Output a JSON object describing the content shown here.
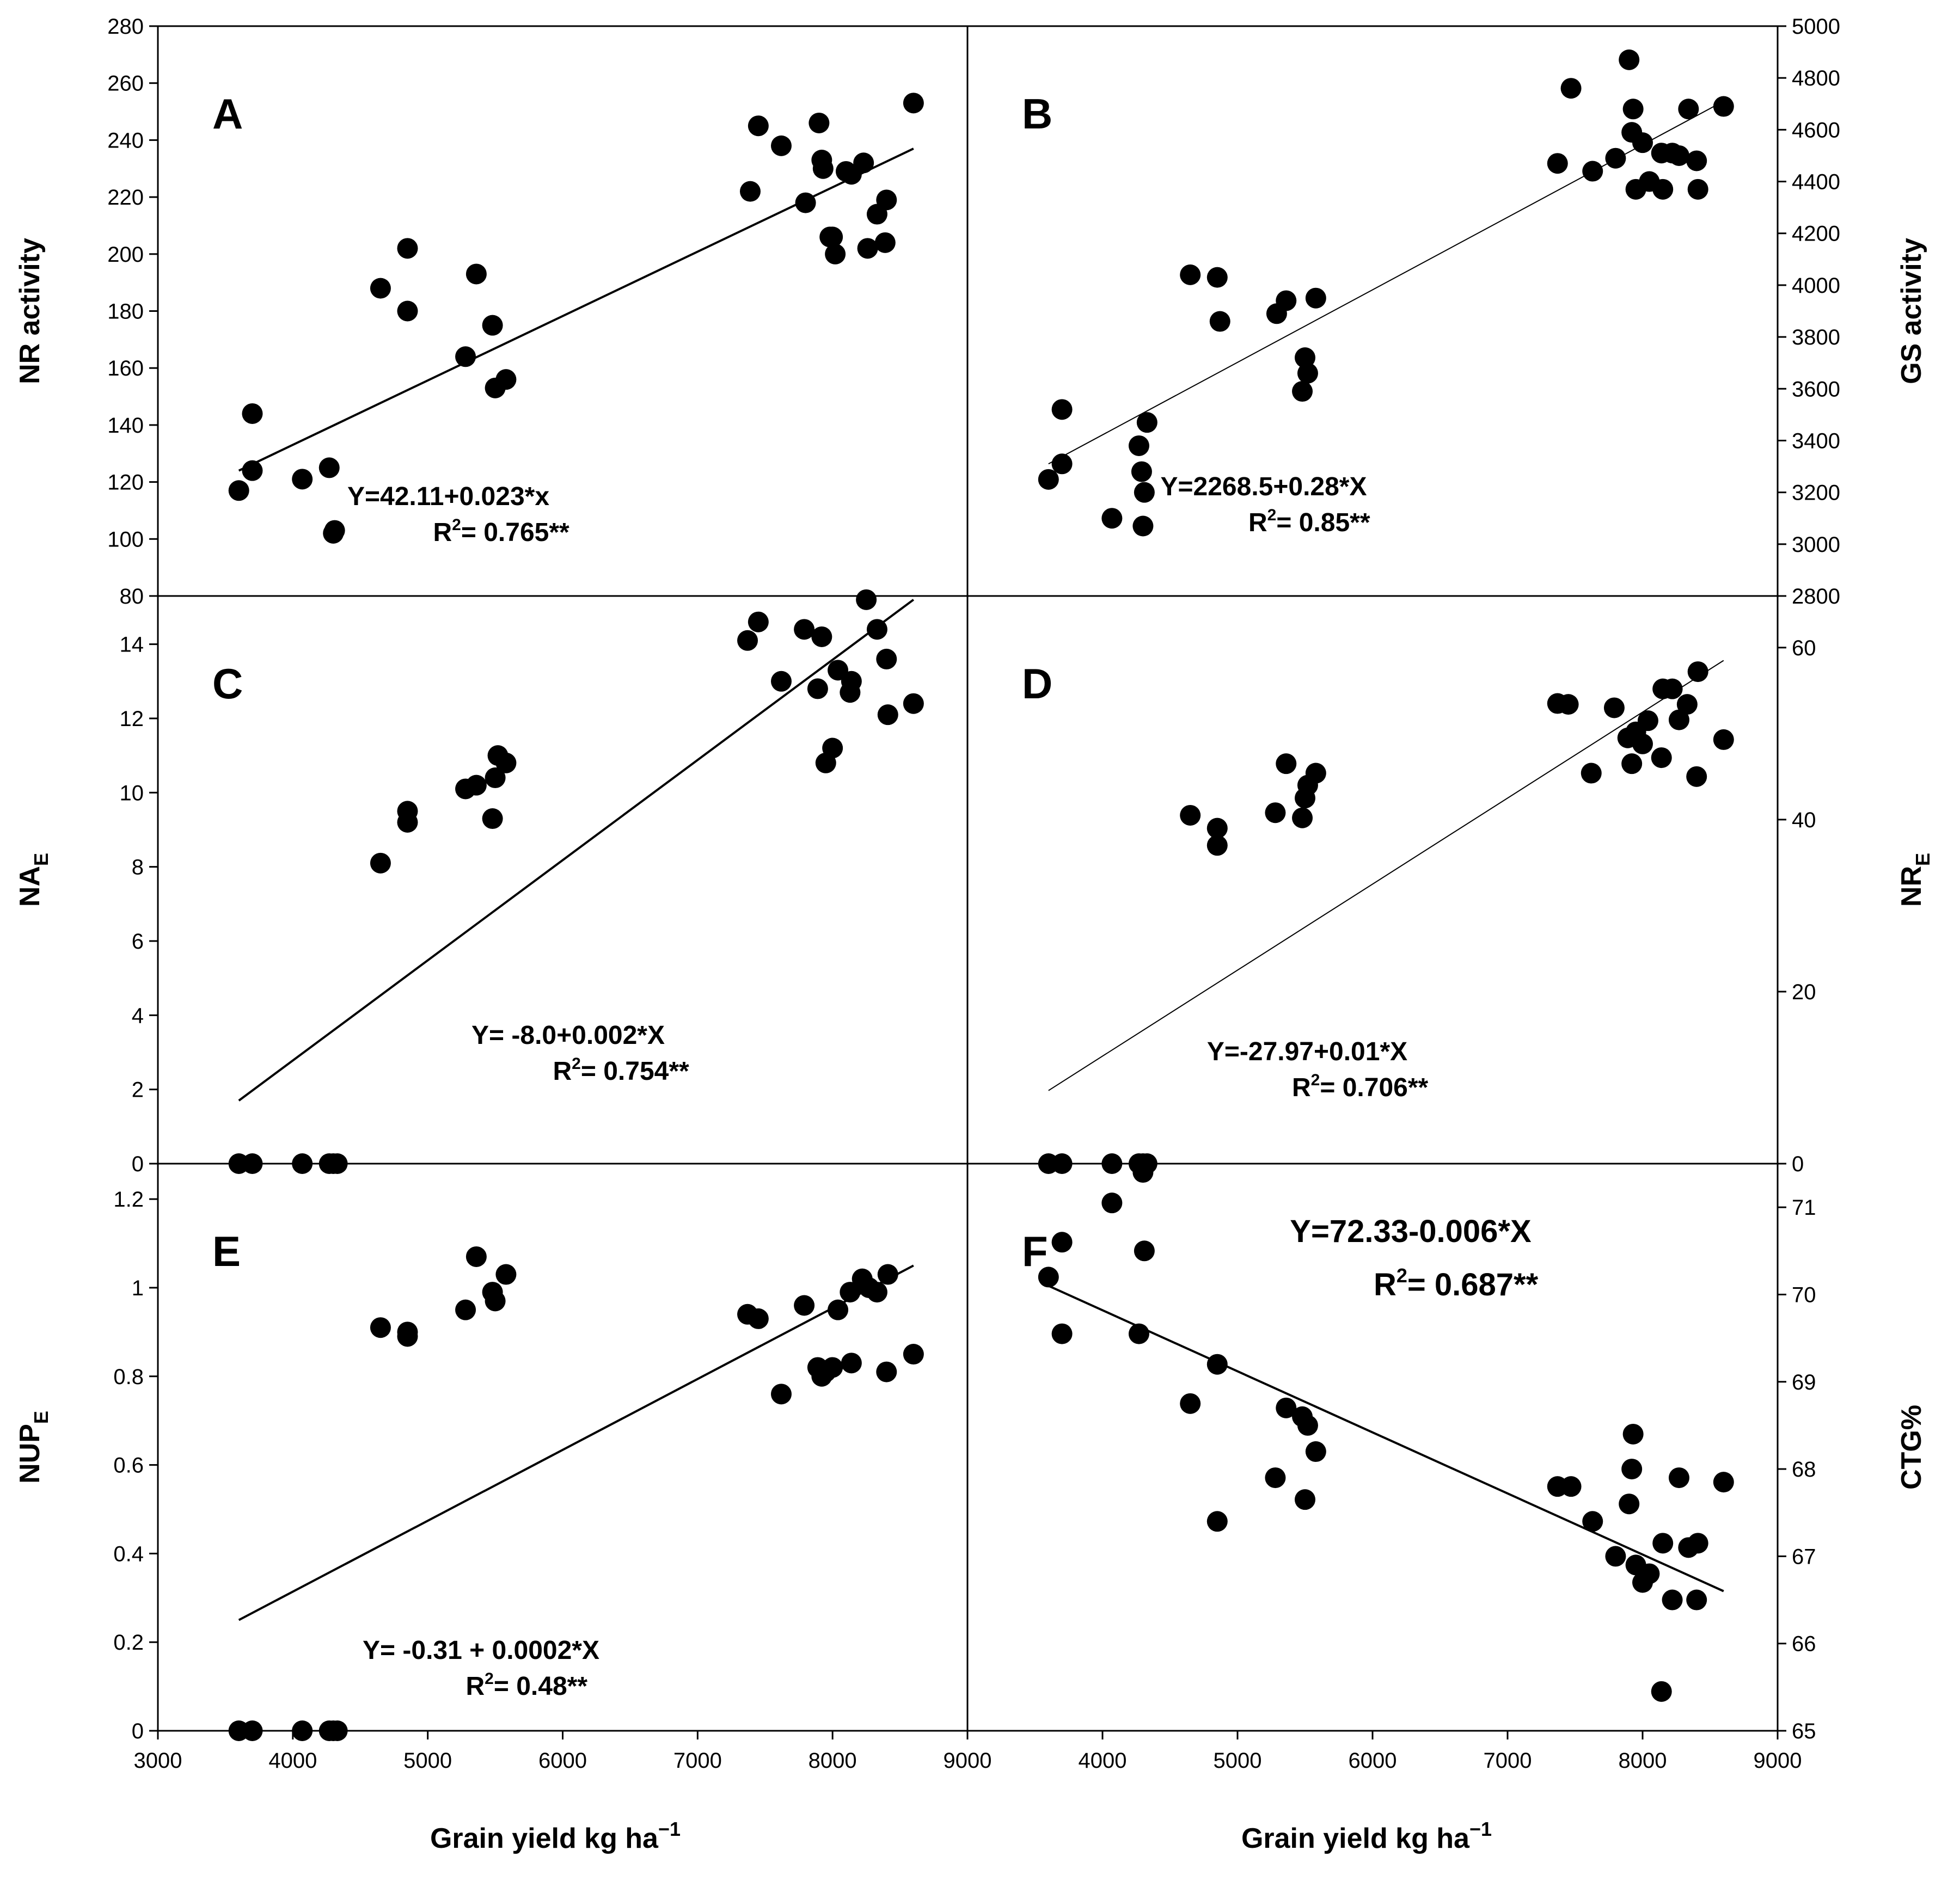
{
  "figure": {
    "xlabel": "Grain yield kg ha",
    "xlabel_sup": "−1",
    "x_ticks": [
      "3000",
      "4000",
      "5000",
      "6000",
      "7000",
      "8000",
      "9000",
      "4000",
      "5000",
      "6000",
      "7000",
      "8000",
      "9000"
    ]
  },
  "chart_data": [
    {
      "id": "A",
      "type": "scatter",
      "panel_label": "A",
      "ylabel": "NR activity",
      "ylabel_sub": "",
      "ylabel_side": "left",
      "xlim": [
        3000,
        9000
      ],
      "ylim": [
        80,
        280
      ],
      "yticks": [
        80,
        100,
        120,
        140,
        160,
        180,
        200,
        220,
        240,
        260,
        280
      ],
      "x": [
        3600,
        3700,
        3700,
        4070,
        4270,
        4300,
        4310,
        4650,
        4850,
        4850,
        5280,
        5360,
        5480,
        5500,
        5580,
        7390,
        7450,
        7620,
        7800,
        7900,
        7920,
        7930,
        7980,
        8000,
        8020,
        8100,
        8140,
        8230,
        8260,
        8330,
        8390,
        8400,
        8600
      ],
      "y": [
        117,
        124,
        144,
        121,
        125,
        102,
        103,
        188,
        180,
        202,
        164,
        193,
        175,
        153,
        156,
        222,
        245,
        238,
        218,
        246,
        233,
        230,
        206,
        206,
        200,
        229,
        228,
        232,
        202,
        214,
        204,
        219,
        253
      ],
      "fit": {
        "x": [
          3600,
          8600
        ],
        "y": [
          124,
          237
        ]
      },
      "equation": "Y=42.11+0.023*x",
      "r2_text": "= 0.765**"
    },
    {
      "id": "B",
      "type": "scatter",
      "panel_label": "B",
      "ylabel": "GS activity",
      "ylabel_sub": "",
      "ylabel_side": "right",
      "xlim": [
        3000,
        9000
      ],
      "ylim": [
        2800,
        5000
      ],
      "yticks": [
        2800,
        3000,
        3200,
        3400,
        3600,
        3800,
        4000,
        4200,
        4400,
        4600,
        4800,
        5000
      ],
      "x": [
        3600,
        3700,
        3700,
        4070,
        4270,
        4290,
        4300,
        4310,
        4330,
        4650,
        4850,
        4870,
        5290,
        5360,
        5480,
        5500,
        5520,
        5580,
        7370,
        7470,
        7630,
        7800,
        7900,
        7920,
        7930,
        7950,
        8000,
        8050,
        8140,
        8150,
        8220,
        8270,
        8340,
        8400,
        8410,
        8600
      ],
      "y": [
        3250,
        3310,
        3520,
        3100,
        3380,
        3280,
        3070,
        3200,
        3470,
        4040,
        4030,
        3860,
        3890,
        3940,
        3590,
        3720,
        3660,
        3950,
        4470,
        4760,
        4440,
        4490,
        4870,
        4590,
        4680,
        4370,
        4550,
        4400,
        4510,
        4370,
        4510,
        4500,
        4680,
        4480,
        4370,
        4690
      ],
      "fit": {
        "x": [
          3600,
          8600
        ],
        "y": [
          3310,
          4710
        ]
      },
      "equation": "Y=2268.5+0.28*X",
      "r2_text": "= 0.85**"
    },
    {
      "id": "C",
      "type": "scatter",
      "panel_label": "C",
      "ylabel": "NA",
      "ylabel_sub": "E",
      "ylabel_side": "left",
      "xlim": [
        3000,
        9000
      ],
      "ylim": [
        0,
        15.3
      ],
      "yticks": [
        0,
        2,
        4,
        6,
        8,
        10,
        12,
        14
      ],
      "x": [
        3600,
        3700,
        4070,
        4270,
        4300,
        4330,
        4650,
        4850,
        4850,
        5280,
        5360,
        5480,
        5500,
        5520,
        5580,
        7370,
        7450,
        7620,
        7790,
        7890,
        7920,
        7950,
        8000,
        8040,
        8130,
        8140,
        8250,
        8330,
        8400,
        8410,
        8600
      ],
      "y": [
        0,
        0,
        0,
        0,
        0,
        0,
        8.1,
        9.2,
        9.5,
        10.1,
        10.2,
        9.3,
        10.4,
        11.0,
        10.8,
        14.1,
        14.6,
        13.0,
        14.4,
        12.8,
        14.2,
        10.8,
        11.2,
        13.3,
        12.7,
        13.0,
        15.2,
        14.4,
        13.6,
        12.1,
        12.4
      ],
      "fit": {
        "x": [
          3600,
          8600
        ],
        "y": [
          1.7,
          15.2
        ]
      },
      "equation": "Y= -8.0+0.002*X",
      "r2_text": "= 0.754**"
    },
    {
      "id": "D",
      "type": "scatter",
      "panel_label": "D",
      "ylabel": "NR",
      "ylabel_sub": "E",
      "ylabel_side": "right",
      "xlim": [
        3000,
        9000
      ],
      "ylim": [
        0,
        66
      ],
      "yticks": [
        0,
        20,
        40,
        60
      ],
      "x": [
        3600,
        3700,
        4070,
        4270,
        4300,
        4330,
        4650,
        4850,
        4850,
        5280,
        5360,
        5480,
        5500,
        5520,
        5580,
        7370,
        7450,
        7620,
        7790,
        7890,
        7920,
        7950,
        8000,
        8040,
        8140,
        8150,
        8220,
        8270,
        8330,
        8400,
        8410,
        8600
      ],
      "y": [
        0,
        0,
        0,
        0,
        0,
        0,
        40.5,
        39,
        37,
        40.8,
        46.5,
        40.2,
        42.5,
        44,
        45.4,
        53.5,
        53.4,
        45.4,
        53,
        49.5,
        46.5,
        50.2,
        48.8,
        51.5,
        47.2,
        55.2,
        55.2,
        51.6,
        53.4,
        45,
        57.2,
        49.3
      ],
      "fit": {
        "x": [
          3600,
          8600
        ],
        "y": [
          8.5,
          58.5
        ]
      },
      "equation": "Y=-27.97+0.01*X",
      "r2_text": "= 0.706**"
    },
    {
      "id": "E",
      "type": "scatter",
      "panel_label": "E",
      "ylabel": "NUP",
      "ylabel_sub": "E",
      "ylabel_side": "left",
      "xlim": [
        3000,
        9000
      ],
      "ylim": [
        0,
        1.28
      ],
      "yticks": [
        0.0,
        0.2,
        0.4,
        0.6,
        0.8,
        1.0,
        1.2
      ],
      "x": [
        3600,
        3700,
        4070,
        4270,
        4300,
        4330,
        4650,
        4850,
        4850,
        5280,
        5360,
        5480,
        5500,
        5580,
        7370,
        7450,
        7620,
        7790,
        7890,
        7920,
        7950,
        8000,
        8040,
        8130,
        8140,
        8220,
        8270,
        8330,
        8400,
        8410,
        8600
      ],
      "y": [
        0,
        0,
        0,
        0,
        0,
        0,
        0.91,
        0.9,
        0.89,
        0.95,
        1.07,
        0.99,
        0.97,
        1.03,
        0.94,
        0.93,
        0.76,
        0.96,
        0.82,
        0.8,
        0.81,
        0.82,
        0.95,
        0.99,
        0.83,
        1.02,
        1.0,
        0.99,
        0.81,
        1.03,
        0.85
      ],
      "fit": {
        "x": [
          3600,
          8600
        ],
        "y": [
          0.25,
          1.05
        ]
      },
      "equation": "Y= -0.31 + 0.0002*X",
      "r2_text": "= 0.48**"
    },
    {
      "id": "F",
      "type": "scatter",
      "panel_label": "F",
      "ylabel": "CTG%",
      "ylabel_sub": "",
      "ylabel_side": "right",
      "xlim": [
        3000,
        9000
      ],
      "ylim": [
        65,
        71.5
      ],
      "yticks": [
        65,
        66,
        67,
        68,
        69,
        70,
        71
      ],
      "x": [
        3600,
        3700,
        3700,
        4070,
        4270,
        4300,
        4310,
        4650,
        4850,
        4850,
        5280,
        5360,
        5480,
        5500,
        5520,
        5580,
        7370,
        7470,
        7630,
        7800,
        7900,
        7920,
        7930,
        7950,
        8000,
        8050,
        8140,
        8150,
        8220,
        8270,
        8340,
        8400,
        8410,
        8600
      ],
      "y": [
        70.2,
        70.6,
        69.55,
        71.05,
        69.55,
        71.4,
        70.5,
        68.75,
        69.2,
        67.4,
        67.9,
        68.7,
        68.6,
        67.65,
        68.5,
        68.2,
        67.8,
        67.8,
        67.4,
        67.0,
        67.6,
        68.0,
        68.4,
        66.9,
        66.7,
        66.8,
        65.45,
        67.15,
        66.5,
        67.9,
        67.1,
        66.5,
        67.15,
        67.85
      ],
      "fit": {
        "x": [
          3600,
          8600
        ],
        "y": [
          70.1,
          66.6
        ]
      },
      "equation": "Y=72.33-0.006*X",
      "r2_text": "= 0.687**"
    }
  ]
}
